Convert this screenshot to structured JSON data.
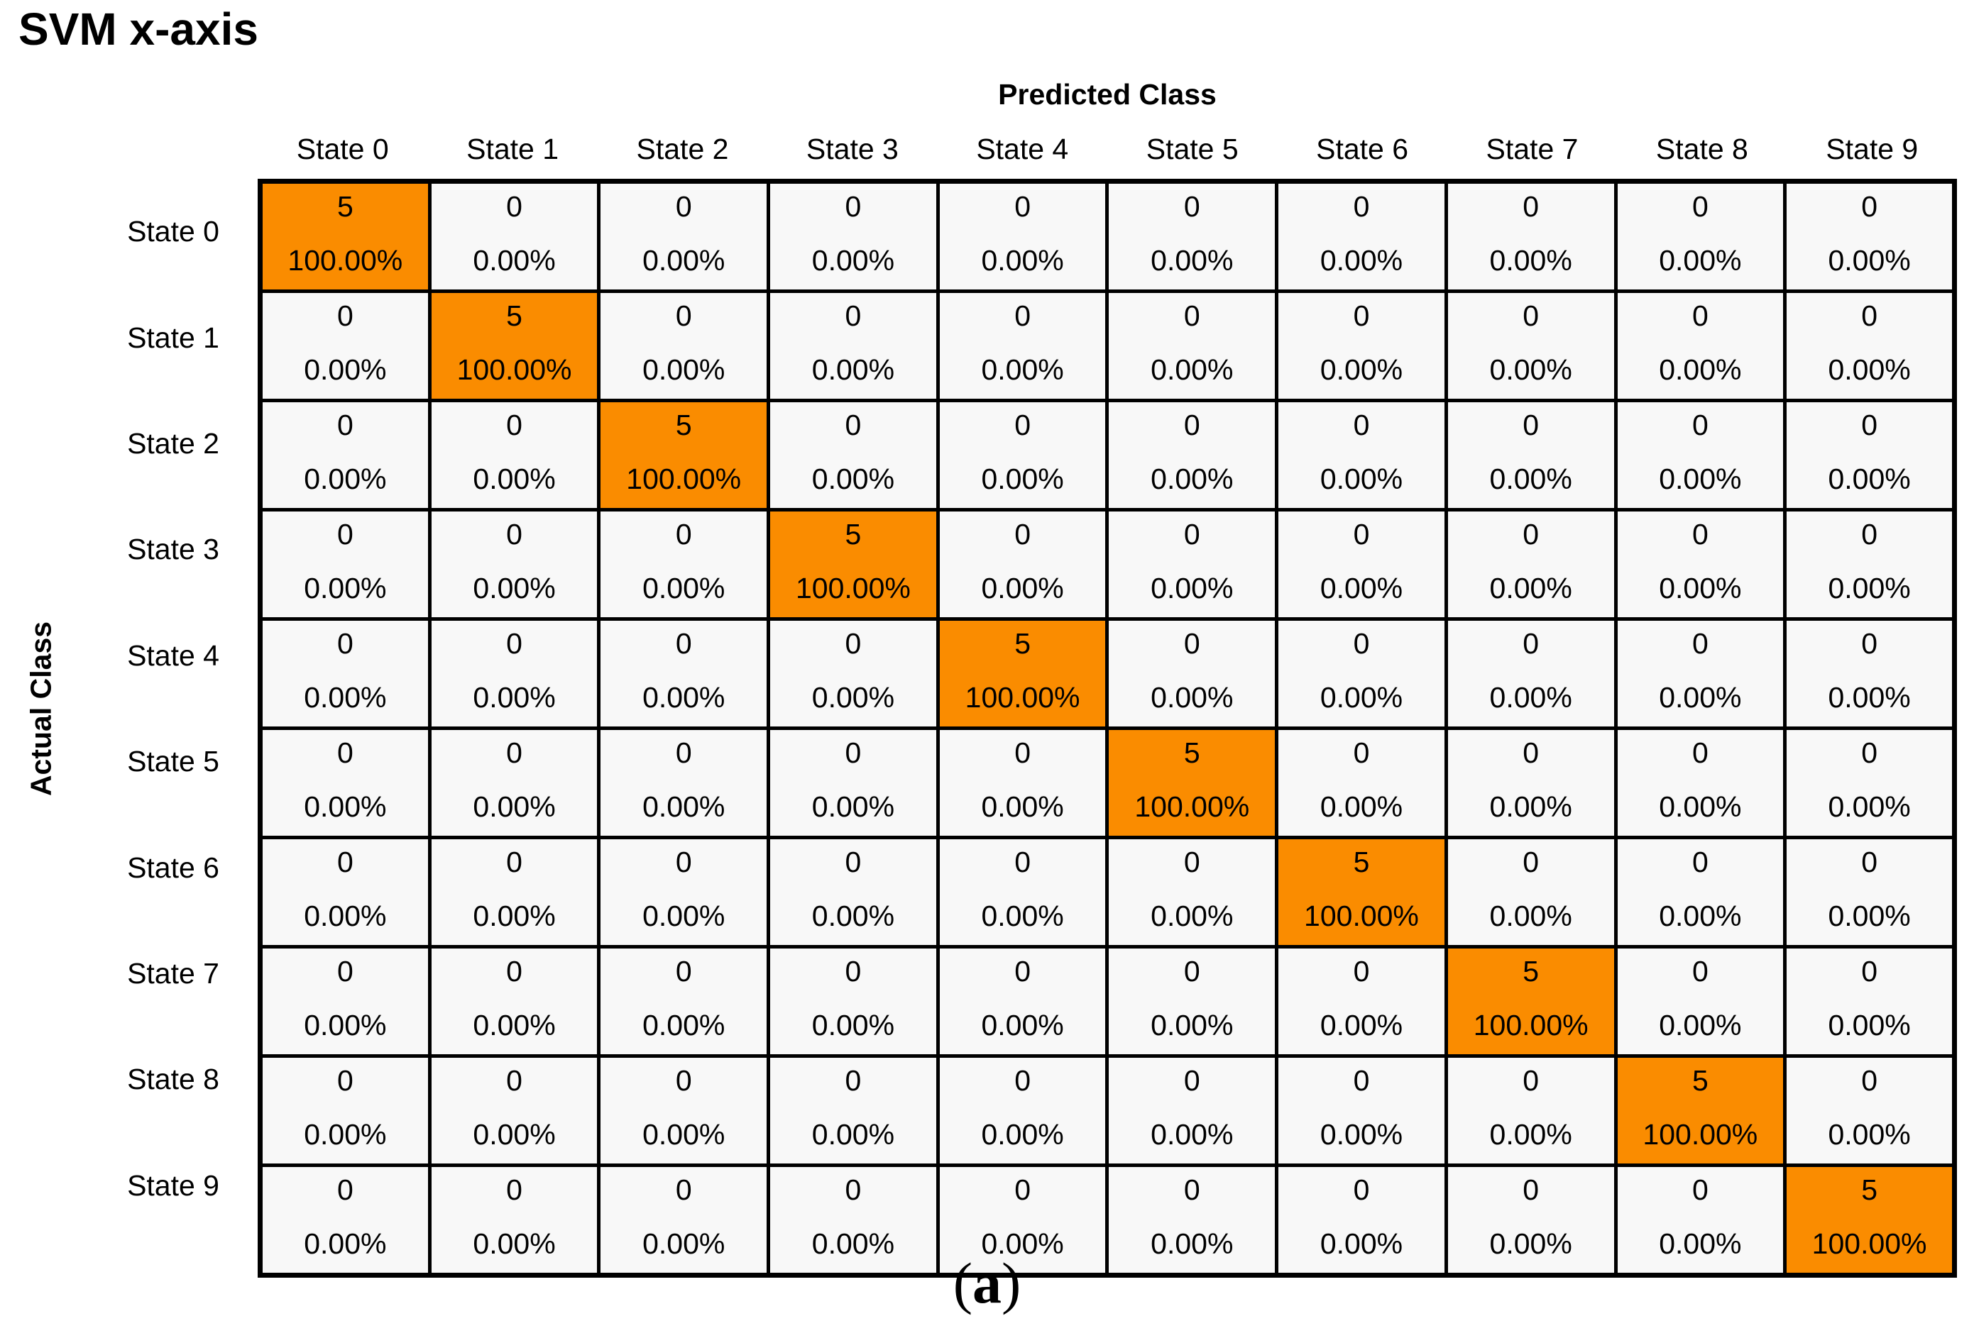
{
  "title": "SVM x-axis",
  "axes": {
    "predicted_label": "Predicted Class",
    "actual_label": "Actual Class"
  },
  "caption": {
    "prefix": "(",
    "letter": "a",
    "suffix": ")"
  },
  "colors": {
    "diagonal_fill": "#FA8C00",
    "off_diagonal_fill": "#F8F8F8",
    "grid_line": "#000000",
    "text": "#000000",
    "background": "#FFFFFF"
  },
  "chart_data": {
    "type": "heatmap",
    "subtype": "confusion-matrix",
    "title": "SVM x-axis",
    "xlabel": "Predicted Class",
    "ylabel": "Actual Class",
    "col_headers": [
      "State 0",
      "State 1",
      "State 2",
      "State 3",
      "State 4",
      "State 5",
      "State 6",
      "State 7",
      "State 8",
      "State 9"
    ],
    "row_headers": [
      "State 0",
      "State 1",
      "State 2",
      "State 3",
      "State 4",
      "State 5",
      "State 6",
      "State 7",
      "State 8",
      "State 9"
    ],
    "counts": [
      [
        5,
        0,
        0,
        0,
        0,
        0,
        0,
        0,
        0,
        0
      ],
      [
        0,
        5,
        0,
        0,
        0,
        0,
        0,
        0,
        0,
        0
      ],
      [
        0,
        0,
        5,
        0,
        0,
        0,
        0,
        0,
        0,
        0
      ],
      [
        0,
        0,
        0,
        5,
        0,
        0,
        0,
        0,
        0,
        0
      ],
      [
        0,
        0,
        0,
        0,
        5,
        0,
        0,
        0,
        0,
        0
      ],
      [
        0,
        0,
        0,
        0,
        0,
        5,
        0,
        0,
        0,
        0
      ],
      [
        0,
        0,
        0,
        0,
        0,
        0,
        5,
        0,
        0,
        0
      ],
      [
        0,
        0,
        0,
        0,
        0,
        0,
        0,
        5,
        0,
        0
      ],
      [
        0,
        0,
        0,
        0,
        0,
        0,
        0,
        0,
        5,
        0
      ],
      [
        0,
        0,
        0,
        0,
        0,
        0,
        0,
        0,
        0,
        5
      ]
    ],
    "percents": [
      [
        "100.00%",
        "0.00%",
        "0.00%",
        "0.00%",
        "0.00%",
        "0.00%",
        "0.00%",
        "0.00%",
        "0.00%",
        "0.00%"
      ],
      [
        "0.00%",
        "100.00%",
        "0.00%",
        "0.00%",
        "0.00%",
        "0.00%",
        "0.00%",
        "0.00%",
        "0.00%",
        "0.00%"
      ],
      [
        "0.00%",
        "0.00%",
        "100.00%",
        "0.00%",
        "0.00%",
        "0.00%",
        "0.00%",
        "0.00%",
        "0.00%",
        "0.00%"
      ],
      [
        "0.00%",
        "0.00%",
        "0.00%",
        "100.00%",
        "0.00%",
        "0.00%",
        "0.00%",
        "0.00%",
        "0.00%",
        "0.00%"
      ],
      [
        "0.00%",
        "0.00%",
        "0.00%",
        "0.00%",
        "100.00%",
        "0.00%",
        "0.00%",
        "0.00%",
        "0.00%",
        "0.00%"
      ],
      [
        "0.00%",
        "0.00%",
        "0.00%",
        "0.00%",
        "0.00%",
        "100.00%",
        "0.00%",
        "0.00%",
        "0.00%",
        "0.00%"
      ],
      [
        "0.00%",
        "0.00%",
        "0.00%",
        "0.00%",
        "0.00%",
        "0.00%",
        "100.00%",
        "0.00%",
        "0.00%",
        "0.00%"
      ],
      [
        "0.00%",
        "0.00%",
        "0.00%",
        "0.00%",
        "0.00%",
        "0.00%",
        "0.00%",
        "100.00%",
        "0.00%",
        "0.00%"
      ],
      [
        "0.00%",
        "0.00%",
        "0.00%",
        "0.00%",
        "0.00%",
        "0.00%",
        "0.00%",
        "0.00%",
        "100.00%",
        "0.00%"
      ],
      [
        "0.00%",
        "0.00%",
        "0.00%",
        "0.00%",
        "0.00%",
        "0.00%",
        "0.00%",
        "0.00%",
        "0.00%",
        "100.00%"
      ]
    ],
    "layout": {
      "diagonal_highlighted": true,
      "cell_format": "count over percent",
      "grid": true,
      "legend": "none"
    }
  }
}
